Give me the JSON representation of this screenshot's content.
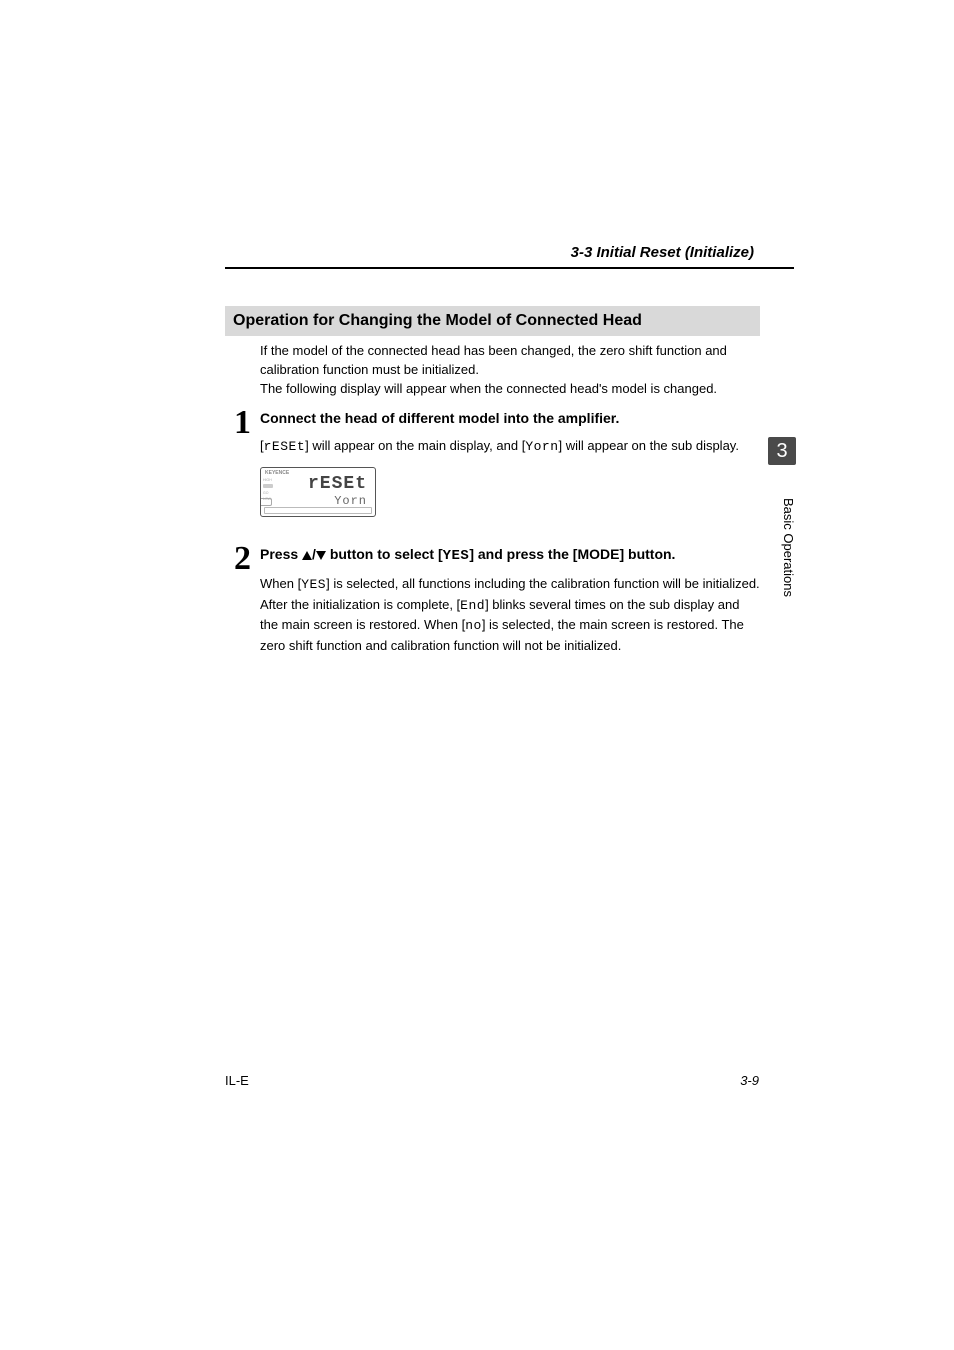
{
  "header": {
    "section_crumb": "3-3  Initial Reset (Initialize)"
  },
  "subsection": {
    "title": "Operation for Changing the Model of Connected Head",
    "bg_color": "#d9d9d9",
    "title_fontsize": 16
  },
  "intro": {
    "line1": "If the model of the connected head has been changed, the zero shift function and calibration function must be initialized.",
    "line2": "The following display will appear when the connected head's model is changed."
  },
  "steps": [
    {
      "num": "1",
      "title": "Connect the head of different model into the amplifier.",
      "body_pre": "[",
      "seg1": "rESEt",
      "body_mid1": "] will appear on the main display, and [",
      "seg2": "Yorn",
      "body_post": "] will appear on the sub display.",
      "display": {
        "brand": "KEYENCE",
        "main": "rESEt",
        "sub": "Yorn"
      }
    },
    {
      "num": "2",
      "title_pre": "Press ",
      "title_mid": " button to select [",
      "title_seg": "YES",
      "title_post": "] and press the [MODE] button.",
      "body_pre": "When [",
      "seg_yes": "YES",
      "body_1": "] is selected, all functions including the calibration function will be initialized. After the initialization is complete, [",
      "seg_end": "End",
      "body_2": "] blinks several times on the sub display and the main screen is restored. When [",
      "seg_no": "no",
      "body_3": "] is selected, the main screen is restored. The zero shift function and calibration function will not be initialized."
    }
  ],
  "sidebar": {
    "chapter_num": "3",
    "chapter_label": "Basic Operations",
    "tab_bg": "#4a4a4a",
    "tab_fg": "#ffffff"
  },
  "footer": {
    "doc_code": "IL-E",
    "page_num": "3-9"
  },
  "colors": {
    "page_bg": "#ffffff",
    "text": "#000000",
    "rule": "#000000"
  },
  "typography": {
    "body_fontsize": 13,
    "step_num_fontsize": 34,
    "crumb_fontsize": 15
  }
}
